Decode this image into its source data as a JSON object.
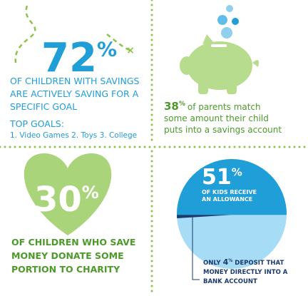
{
  "unit": "%",
  "savings_goal": {
    "value": 72,
    "lines": [
      "OF CHILDREN WITH SAVINGS",
      "ARE ACTIVELY SAVING FOR A",
      "SPECIFIC GOAL"
    ],
    "goals_title": "TOP GOALS:",
    "goals": "1. Video Games  2. Toys  3. College"
  },
  "parents_match": {
    "value": 38,
    "lines": [
      "of parents match",
      "some amount their child",
      "puts into a savings account"
    ]
  },
  "charity": {
    "value": 30,
    "lines": [
      "OF CHILDREN WHO SAVE",
      "MONEY DONATE SOME",
      "PORTION TO CHARITY"
    ]
  },
  "allowance": {
    "value": 51,
    "lines": [
      "OF KIDS RECEIVE",
      "AN ALLOWANCE"
    ],
    "deposit_prefix": "ONLY",
    "deposit_value": 4,
    "deposit_lines": [
      "DEPOSIT THAT",
      "MONEY DIRECTLY INTO A",
      "BANK ACCOUNT"
    ]
  }
}
